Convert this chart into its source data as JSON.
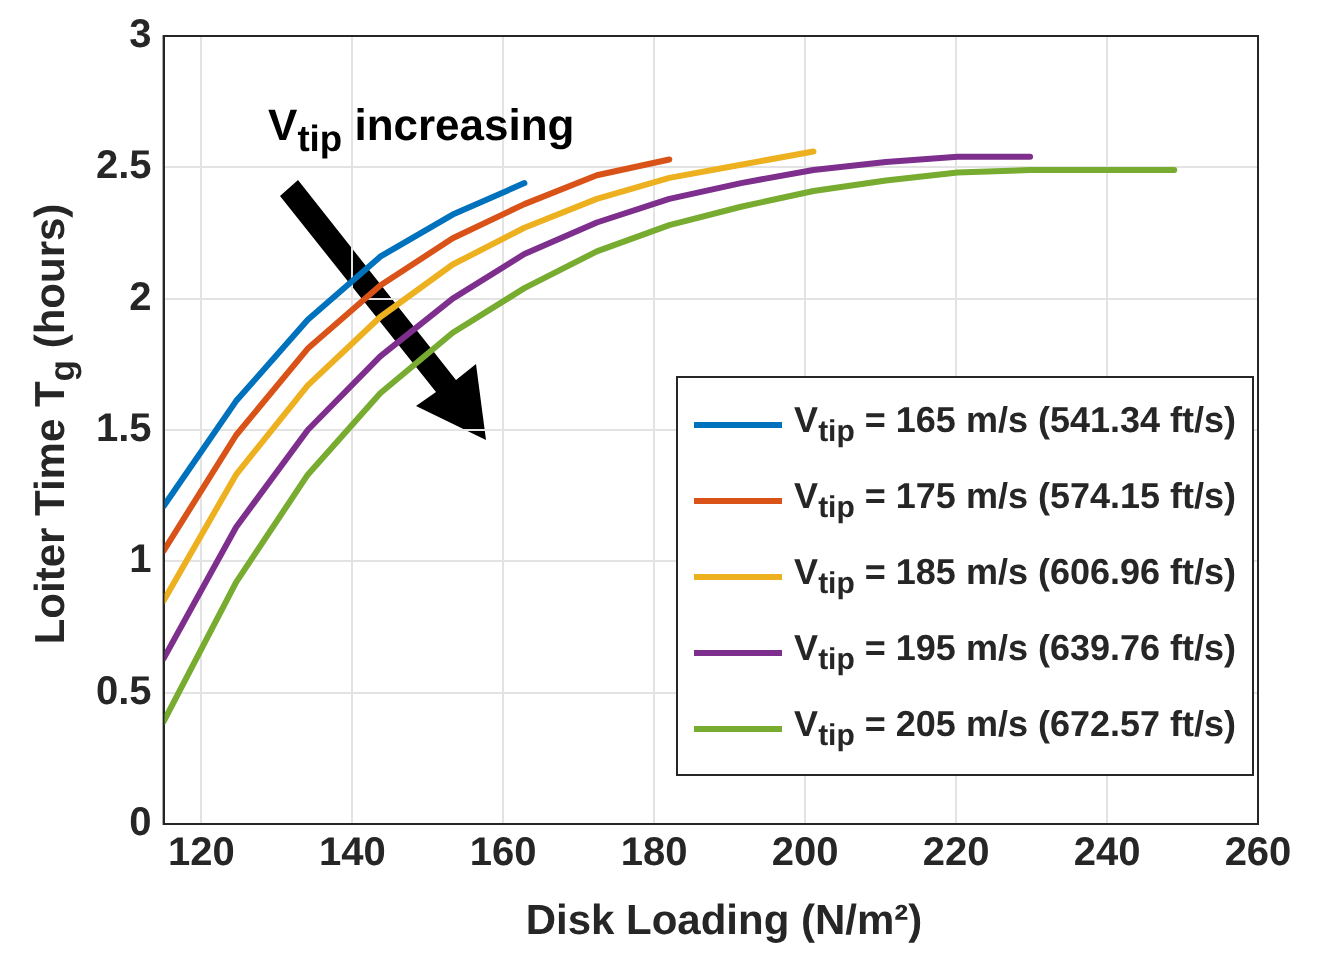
{
  "chart_data": {
    "type": "line",
    "xlabel": "Disk Loading (N/m²)",
    "ylabel": "Loiter Time T$_{g}$ (hours)",
    "annotations": [
      "V$_{tip}$ increasing"
    ],
    "xlim": [
      115,
      260
    ],
    "xticks": [
      120,
      140,
      160,
      180,
      200,
      220,
      240,
      260
    ],
    "ylim": [
      0,
      3
    ],
    "yticks": [
      0,
      0.5,
      1,
      1.5,
      2,
      2.5,
      3
    ],
    "grid": true,
    "legend": "bottom right",
    "marker": "none",
    "line_style": "solid",
    "series": [
      {
        "name": "V$_{tip}$ = 165 m/s (541.34 ft/s)",
        "color": "#0072bd",
        "x": [
          115,
          124.6,
          134.1,
          143.7,
          153.3,
          162.8
        ],
        "values": [
          1.21,
          1.61,
          1.92,
          2.16,
          2.32,
          2.44
        ]
      },
      {
        "name": "V$_{tip}$ = 175 m/s (574.15 ft/s)",
        "color": "#d95319",
        "x": [
          115,
          124.6,
          134.1,
          143.7,
          153.3,
          162.8,
          172.4,
          182
        ],
        "values": [
          1.04,
          1.48,
          1.81,
          2.05,
          2.23,
          2.36,
          2.47,
          2.53
        ]
      },
      {
        "name": "V$_{tip}$ = 185 m/s (606.96 ft/s)",
        "color": "#edb120",
        "x": [
          115,
          124.6,
          134.1,
          143.7,
          153.3,
          162.8,
          172.4,
          182,
          191.5,
          201.1
        ],
        "values": [
          0.85,
          1.33,
          1.67,
          1.93,
          2.13,
          2.27,
          2.38,
          2.46,
          2.51,
          2.56
        ]
      },
      {
        "name": "V$_{tip}$ = 195 m/s (639.76 ft/s)",
        "color": "#7e2f8e",
        "x": [
          115,
          124.6,
          134.1,
          143.7,
          153.3,
          162.8,
          172.4,
          182,
          191.5,
          201.1,
          210.7,
          220.2,
          229.8
        ],
        "values": [
          0.63,
          1.13,
          1.5,
          1.78,
          2.0,
          2.17,
          2.29,
          2.38,
          2.44,
          2.49,
          2.52,
          2.54,
          2.54
        ]
      },
      {
        "name": "V$_{tip}$ = 205 m/s (672.57 ft/s)",
        "color": "#77ac30",
        "x": [
          115,
          124.6,
          134.1,
          143.7,
          153.3,
          162.8,
          172.4,
          182,
          191.5,
          201.1,
          210.7,
          220.2,
          229.8,
          239.4,
          248.9
        ],
        "values": [
          0.39,
          0.92,
          1.33,
          1.64,
          1.87,
          2.04,
          2.18,
          2.28,
          2.35,
          2.41,
          2.45,
          2.48,
          2.49,
          2.49,
          2.49
        ]
      }
    ]
  }
}
